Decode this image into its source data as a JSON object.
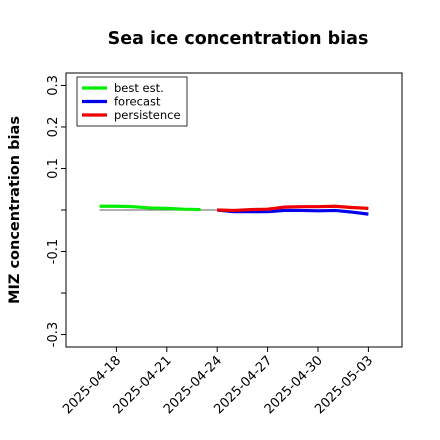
{
  "chart_data": {
    "type": "line",
    "title": "Sea ice concentration bias",
    "ylabel": "MIZ concentration bias",
    "xlabel": "",
    "ylim": [
      -0.33,
      0.33
    ],
    "yticks": [
      -0.3,
      -0.2,
      -0.1,
      0.0,
      0.1,
      0.2,
      0.3
    ],
    "ytick_labels": [
      "-0.3",
      "",
      "-0.1",
      "",
      "0.1",
      "0.2",
      "0.3"
    ],
    "xlim": [
      "2025-04-15",
      "2025-05-05"
    ],
    "xticks": [
      "2025-04-18",
      "2025-04-21",
      "2025-04-24",
      "2025-04-27",
      "2025-04-30",
      "2025-05-03"
    ],
    "highlighted_xtick": "2025-04-24",
    "highlight_color": "#228b22",
    "reference_line": {
      "y": 0.0,
      "from": "2025-04-17",
      "to": "2025-04-24",
      "color": "#808080"
    },
    "legend_position": "upper left",
    "series": [
      {
        "name": "best est.",
        "color": "#00ee00",
        "x": [
          "2025-04-17",
          "2025-04-18",
          "2025-04-19",
          "2025-04-20",
          "2025-04-21",
          "2025-04-22",
          "2025-04-23"
        ],
        "y": [
          0.009,
          0.009,
          0.008,
          0.005,
          0.004,
          0.002,
          0.001
        ]
      },
      {
        "name": "forecast",
        "color": "#0000ee",
        "x": [
          "2025-04-24",
          "2025-04-25",
          "2025-04-26",
          "2025-04-27",
          "2025-04-28",
          "2025-04-29",
          "2025-04-30",
          "2025-05-01",
          "2025-05-02",
          "2025-05-03"
        ],
        "y": [
          0.0,
          -0.004,
          -0.004,
          -0.004,
          -0.001,
          -0.001,
          -0.002,
          -0.001,
          -0.005,
          -0.01
        ]
      },
      {
        "name": "persistence",
        "color": "#ee0000",
        "x": [
          "2025-04-24",
          "2025-04-25",
          "2025-04-26",
          "2025-04-27",
          "2025-04-28",
          "2025-04-29",
          "2025-04-30",
          "2025-05-01",
          "2025-05-02",
          "2025-05-03"
        ],
        "y": [
          0.0,
          -0.001,
          0.001,
          0.002,
          0.007,
          0.008,
          0.008,
          0.009,
          0.006,
          0.004
        ]
      }
    ]
  }
}
